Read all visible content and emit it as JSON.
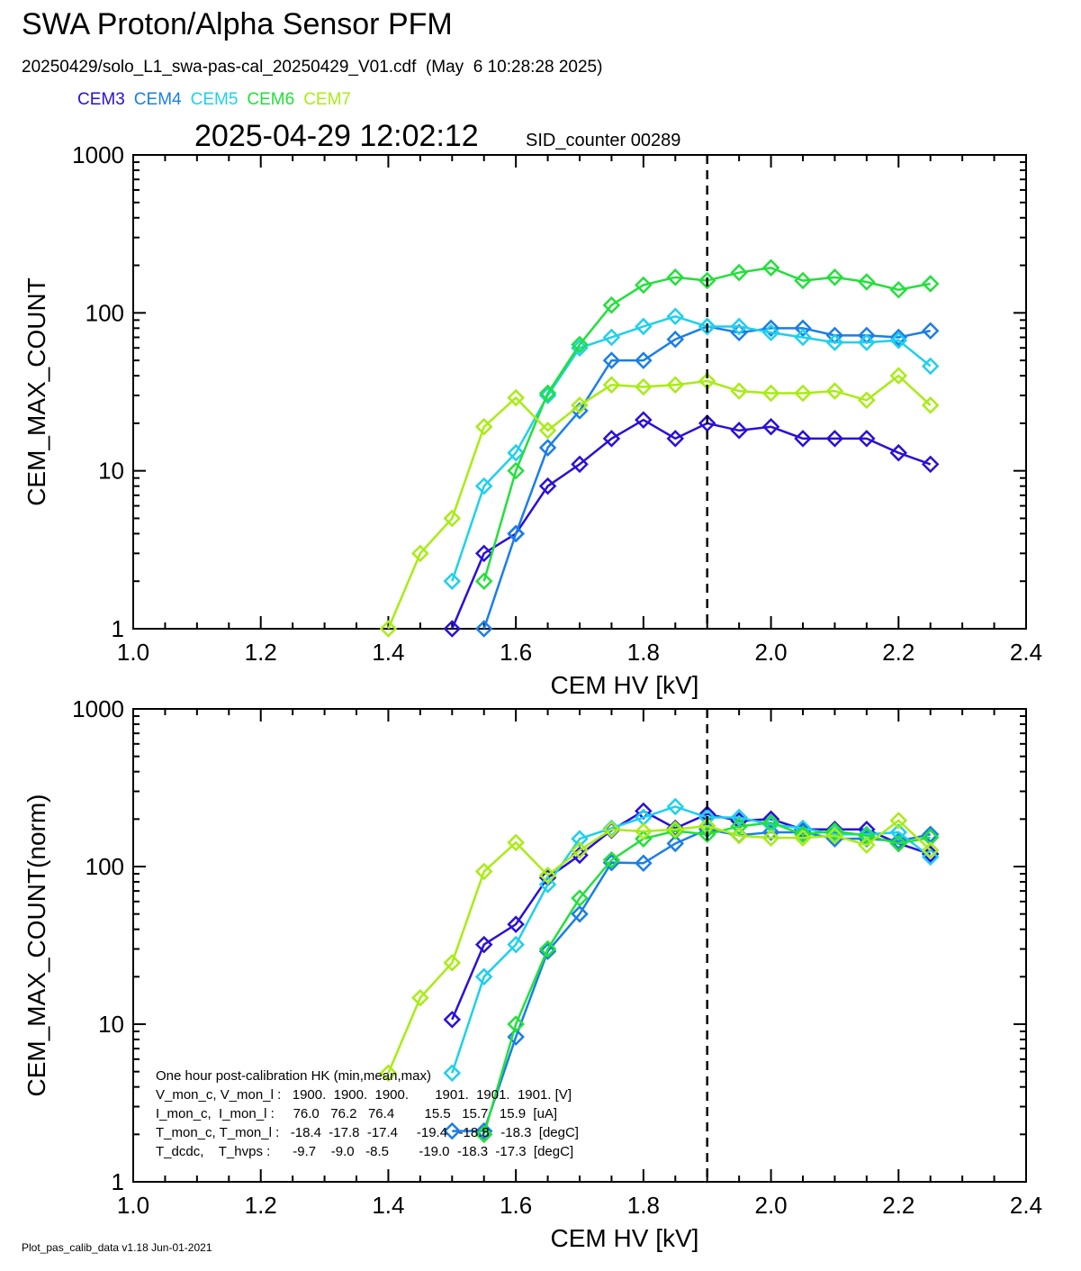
{
  "header": {
    "title": "SWA Proton/Alpha Sensor PFM",
    "file_info": "20250429/solo_L1_swa-pas-cal_20250429_V01.cdf  (May  6 10:28:28 2025)",
    "timestamp": "2025-04-29 12:02:12",
    "sid_counter": "SID_counter 00289"
  },
  "legend": [
    {
      "name": "CEM3",
      "color": "#2a10d8"
    },
    {
      "name": "CEM4",
      "color": "#1a7ee8"
    },
    {
      "name": "CEM5",
      "color": "#1ed0ec"
    },
    {
      "name": "CEM6",
      "color": "#22e03a"
    },
    {
      "name": "CEM7",
      "color": "#a8ec14"
    }
  ],
  "footer": "Plot_pas_calib_data v1.18 Jun-01-2021",
  "chart_data": [
    {
      "type": "line",
      "xlabel": "CEM HV [kV]",
      "ylabel": "CEM_MAX_COUNT",
      "xlim": [
        1.0,
        2.4
      ],
      "ylim": [
        1,
        1000
      ],
      "yscale": "log",
      "xticks": [
        "1.0",
        "1.2",
        "1.4",
        "1.6",
        "1.8",
        "2.0",
        "2.2",
        "2.4"
      ],
      "yticks": [
        "1",
        "10",
        "100",
        "1000"
      ],
      "vline": 1.9,
      "x": [
        1.4,
        1.45,
        1.5,
        1.55,
        1.6,
        1.65,
        1.7,
        1.75,
        1.8,
        1.85,
        1.9,
        1.95,
        2.0,
        2.05,
        2.1,
        2.15,
        2.2,
        2.25
      ],
      "series": [
        {
          "name": "CEM3",
          "values": [
            null,
            null,
            1,
            3,
            4,
            8,
            11,
            16,
            21,
            16,
            20,
            18,
            19,
            16,
            16,
            16,
            13,
            11
          ]
        },
        {
          "name": "CEM4",
          "values": [
            null,
            null,
            null,
            1,
            4,
            14,
            24,
            50,
            50,
            68,
            82,
            75,
            80,
            80,
            72,
            72,
            70,
            77
          ]
        },
        {
          "name": "CEM5",
          "values": [
            null,
            null,
            2,
            8,
            13,
            30,
            60,
            70,
            82,
            95,
            82,
            82,
            75,
            70,
            65,
            65,
            67,
            46
          ]
        },
        {
          "name": "CEM6",
          "values": [
            null,
            null,
            null,
            2,
            10,
            31,
            63,
            112,
            150,
            168,
            160,
            180,
            193,
            160,
            168,
            157,
            140,
            153
          ]
        },
        {
          "name": "CEM7",
          "values": [
            1,
            3,
            5,
            19,
            29,
            18,
            26,
            35,
            34,
            35,
            37,
            32,
            31,
            31,
            32,
            28,
            40,
            26
          ]
        }
      ]
    },
    {
      "type": "line",
      "xlabel": "CEM HV [kV]",
      "ylabel": "CEM_MAX_COUNT(norm)",
      "xlim": [
        1.0,
        2.4
      ],
      "ylim": [
        1,
        1000
      ],
      "yscale": "log",
      "xticks": [
        "1.0",
        "1.2",
        "1.4",
        "1.6",
        "1.8",
        "2.0",
        "2.2",
        "2.4"
      ],
      "yticks": [
        "1",
        "10",
        "100",
        "1000"
      ],
      "vline": 1.9,
      "x": [
        1.4,
        1.45,
        1.5,
        1.55,
        1.6,
        1.65,
        1.7,
        1.75,
        1.8,
        1.85,
        1.9,
        1.95,
        2.0,
        2.05,
        2.1,
        2.15,
        2.2,
        2.25
      ],
      "series": [
        {
          "name": "CEM3",
          "values": [
            null,
            null,
            10.7,
            32,
            43,
            85,
            118,
            170,
            225,
            175,
            215,
            195,
            200,
            172,
            172,
            172,
            140,
            120
          ]
        },
        {
          "name": "CEM4",
          "values": [
            null,
            null,
            2.1,
            2.1,
            8.3,
            29,
            50,
            106,
            105,
            140,
            172,
            158,
            165,
            165,
            150,
            150,
            145,
            160
          ]
        },
        {
          "name": "CEM5",
          "values": [
            null,
            null,
            4.9,
            20,
            32,
            77,
            150,
            175,
            205,
            240,
            205,
            205,
            185,
            175,
            160,
            160,
            165,
            115
          ]
        },
        {
          "name": "CEM6",
          "values": [
            null,
            null,
            null,
            2.0,
            10,
            30,
            63,
            110,
            150,
            168,
            160,
            180,
            190,
            160,
            168,
            157,
            140,
            153
          ]
        },
        {
          "name": "CEM7",
          "values": [
            4.9,
            14.7,
            24.5,
            93,
            142,
            88,
            127,
            172,
            167,
            172,
            181,
            157,
            152,
            152,
            157,
            137,
            196,
            127
          ]
        }
      ]
    }
  ],
  "hk_box": {
    "lines": [
      "One hour post-calibration HK (min,mean,max)",
      "V_mon_c, V_mon_l :   1900.  1900.  1900.       1901.  1901.  1901. [V]",
      "I_mon_c,  I_mon_l :     76.0   76.2   76.4        15.5   15.7   15.9  [uA]",
      "T_mon_c, T_mon_l :   -18.4  -17.8  -17.4     -19.4   -18.8   -18.3  [degC]",
      "T_dcdc,    T_hvps :      -9.7    -9.0   -8.5        -19.0  -18.3  -17.3  [degC]"
    ]
  }
}
